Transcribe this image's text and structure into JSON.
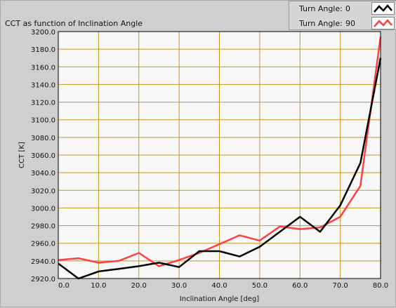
{
  "chart_data": {
    "type": "line",
    "title": "CCT as function of Inclination Angle",
    "xlabel": "Inclination Angle [deg]",
    "ylabel": "CCT [K]",
    "xlim": [
      0,
      80
    ],
    "ylim": [
      2920,
      3200
    ],
    "xticks": [
      "0.0",
      "10.0",
      "20.0",
      "30.0",
      "40.0",
      "50.0",
      "60.0",
      "70.0",
      "80.0"
    ],
    "yticks": [
      "2920.0",
      "2940.0",
      "2960.0",
      "2980.0",
      "3000.0",
      "3020.0",
      "3040.0",
      "3060.0",
      "3080.0",
      "3100.0",
      "3120.0",
      "3140.0",
      "3160.0",
      "3180.0",
      "3200.0"
    ],
    "grid": true,
    "legend_position": "top-right",
    "x": [
      0,
      5,
      10,
      15,
      20,
      25,
      30,
      35,
      40,
      45,
      50,
      55,
      60,
      65,
      70,
      75,
      80
    ],
    "series": [
      {
        "name": "Turn Angle:",
        "legend_value": "0",
        "color": "#000000",
        "values": [
          2937,
          2920,
          2928,
          2931,
          2934,
          2938,
          2933,
          2951,
          2951,
          2945,
          2956,
          2973,
          2990,
          2973,
          3003,
          3051,
          3170
        ]
      },
      {
        "name": "Turn Angle:",
        "legend_value": "90",
        "color": "#ff4040",
        "values": [
          2941,
          2943,
          2938,
          2940,
          2949,
          2934,
          2941,
          2949,
          2959,
          2969,
          2963,
          2979,
          2976,
          2978,
          2990,
          3025,
          3194
        ]
      }
    ]
  },
  "colors": {
    "plot_background": "#f8f8f8",
    "grid": "#c8961e",
    "frame": "#000000"
  }
}
